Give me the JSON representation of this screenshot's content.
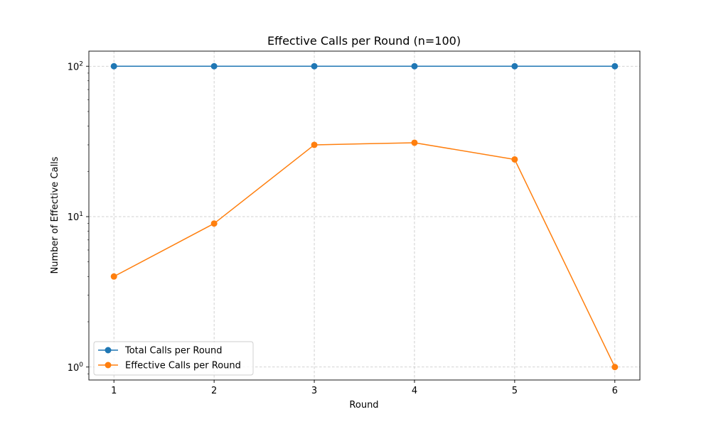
{
  "chart_data": {
    "type": "line",
    "title": "Effective Calls per Round (n=100)",
    "xlabel": "Round",
    "ylabel": "Number of Effective Calls",
    "x": [
      1,
      2,
      3,
      4,
      5,
      6
    ],
    "xlim": [
      0.75,
      6.25
    ],
    "ylim": [
      0.82,
      126
    ],
    "yscale": "log",
    "x_ticks": [
      "1",
      "2",
      "3",
      "4",
      "5",
      "6"
    ],
    "y_ticks": [
      {
        "value": 1,
        "base": "10",
        "exp": "0"
      },
      {
        "value": 10,
        "base": "10",
        "exp": "1"
      },
      {
        "value": 100,
        "base": "10",
        "exp": "2"
      }
    ],
    "grid": true,
    "legend_position": "lower-left",
    "series": [
      {
        "name": "Total Calls per Round",
        "color": "#1f77b4",
        "marker": "circle",
        "values": [
          100,
          100,
          100,
          100,
          100,
          100
        ]
      },
      {
        "name": "Effective Calls per Round",
        "color": "#ff7f0e",
        "marker": "circle",
        "values": [
          4,
          9,
          30,
          31,
          24,
          1
        ]
      }
    ]
  }
}
